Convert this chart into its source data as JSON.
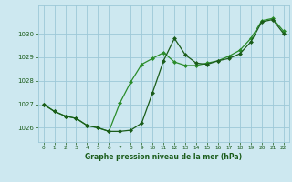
{
  "title": "Graphe pression niveau de la mer (hPa)",
  "bg_color": "#cde8f0",
  "grid_color": "#9dc8d8",
  "line_color_dark": "#1a5c1a",
  "line_color_light": "#2a8c2a",
  "xlim": [
    -0.5,
    22.5
  ],
  "ylim": [
    1025.4,
    1031.2
  ],
  "yticks": [
    1026,
    1027,
    1028,
    1029,
    1030
  ],
  "xticks": [
    0,
    1,
    2,
    3,
    4,
    5,
    6,
    7,
    8,
    9,
    10,
    11,
    12,
    13,
    14,
    15,
    16,
    17,
    18,
    19,
    20,
    21,
    22
  ],
  "line1_x": [
    0,
    1,
    2,
    3,
    4,
    5,
    6,
    7,
    8,
    9,
    10,
    11,
    12,
    13,
    14,
    15,
    16,
    17,
    18,
    19,
    20,
    21,
    22
  ],
  "line1_y": [
    1027.0,
    1026.7,
    1026.5,
    1026.4,
    1026.1,
    1026.0,
    1025.85,
    1025.85,
    1025.9,
    1026.2,
    1027.5,
    1028.85,
    1029.8,
    1029.1,
    1028.75,
    1028.7,
    1028.85,
    1028.95,
    1029.15,
    1029.65,
    1030.5,
    1030.6,
    1030.0
  ],
  "line2_x": [
    0,
    1,
    2,
    3,
    4,
    5,
    6,
    7,
    8,
    9,
    10,
    11,
    12,
    13,
    14,
    15,
    16,
    17,
    18,
    19,
    20,
    21,
    22
  ],
  "line2_y": [
    1027.0,
    1026.7,
    1026.5,
    1026.4,
    1026.1,
    1026.0,
    1025.85,
    1027.05,
    1027.95,
    1028.7,
    1028.95,
    1029.2,
    1028.8,
    1028.65,
    1028.65,
    1028.75,
    1028.85,
    1029.05,
    1029.3,
    1029.8,
    1030.55,
    1030.65,
    1030.1
  ]
}
